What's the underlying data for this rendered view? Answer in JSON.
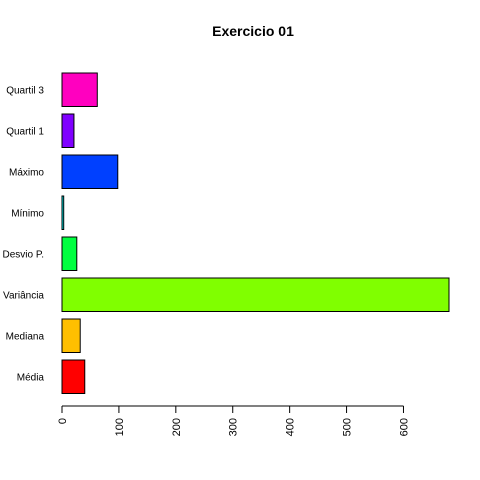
{
  "chart_data": {
    "type": "bar",
    "orientation": "horizontal",
    "title": "Exercicio 01",
    "xlabel": "",
    "ylabel": "",
    "categories": [
      "Média",
      "Mediana",
      "Variância",
      "Desvio P.",
      "Mínimo",
      "Máximo",
      "Quartil 1",
      "Quartil 3"
    ],
    "values": [
      40,
      32,
      680,
      26,
      3,
      98,
      21,
      62
    ],
    "colors": [
      "#ff0000",
      "#ffbf00",
      "#80ff00",
      "#00ff40",
      "#00ffff",
      "#0040ff",
      "#8000ff",
      "#ff00bf"
    ],
    "xlim": [
      0,
      680
    ],
    "xticks": [
      0,
      100,
      200,
      300,
      400,
      500,
      600
    ],
    "grid": false,
    "legend": "none"
  }
}
